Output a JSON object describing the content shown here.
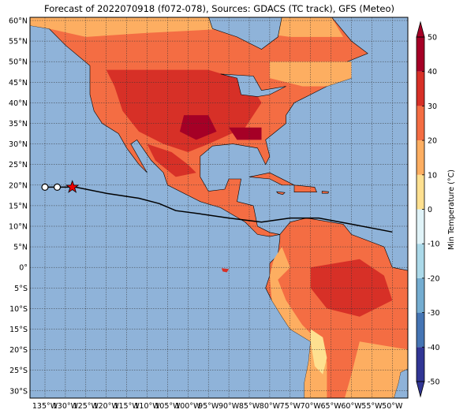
{
  "title": "Forecast of 2022070918 (f072-078), Sources: GDACS (TC track), GFS (Meteo)",
  "lat_labels": [
    "60°N",
    "55°N",
    "50°N",
    "45°N",
    "40°N",
    "35°N",
    "30°N",
    "25°N",
    "20°N",
    "15°N",
    "10°N",
    "5°N",
    "0°",
    "5°S",
    "10°S",
    "15°S",
    "20°S",
    "25°S",
    "30°S"
  ],
  "lon_labels": [
    "135°W",
    "130°W",
    "125°W",
    "120°W",
    "115°W",
    "110°W",
    "105°W",
    "100°W",
    "95°W",
    "90°W",
    "85°W",
    "80°W",
    "75°W",
    "70°W",
    "65°W",
    "60°W",
    "55°W",
    "50°W"
  ],
  "colorbar": {
    "label": "Min Temperature (°C)",
    "ticks": [
      -50,
      -40,
      -30,
      -20,
      -10,
      0,
      10,
      20,
      30,
      40,
      50
    ],
    "colors": [
      "#313695",
      "#4575b4",
      "#74add1",
      "#abd9e9",
      "#e0f3f8",
      "#fee090",
      "#fdae61",
      "#f46d43",
      "#d73027",
      "#a50026"
    ]
  }
}
